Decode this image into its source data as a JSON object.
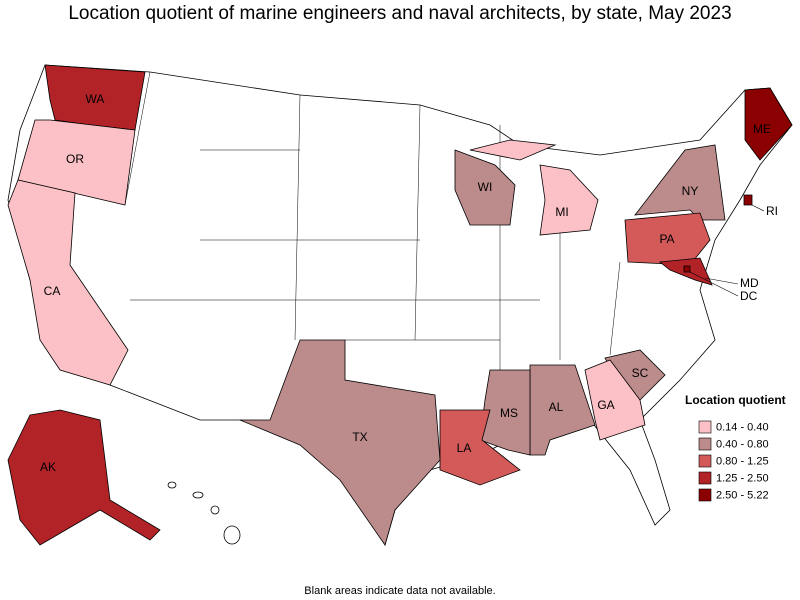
{
  "title": "Location quotient of marine engineers and naval architects, by state, May 2023",
  "legend": {
    "title": "Location quotient",
    "items": [
      {
        "label": "0.14 - 0.40",
        "color": "#fbc1c6",
        "states": [
          "OR",
          "CA",
          "MI",
          "GA"
        ]
      },
      {
        "label": "0.40 - 0.80",
        "color": "#bc8c8c",
        "states": [
          "WI",
          "NY",
          "TX",
          "MS",
          "AL",
          "SC"
        ]
      },
      {
        "label": "0.80 - 1.25",
        "color": "#d45a5a",
        "states": [
          "PA",
          "LA"
        ]
      },
      {
        "label": "1.25 - 2.50",
        "color": "#b22328",
        "states": [
          "WA",
          "AK",
          "MD"
        ]
      },
      {
        "label": "2.50 - 5.22",
        "color": "#8b0000",
        "states": [
          "ME",
          "RI",
          "DC"
        ]
      }
    ]
  },
  "footnote": "Blank areas indicate data not available."
}
